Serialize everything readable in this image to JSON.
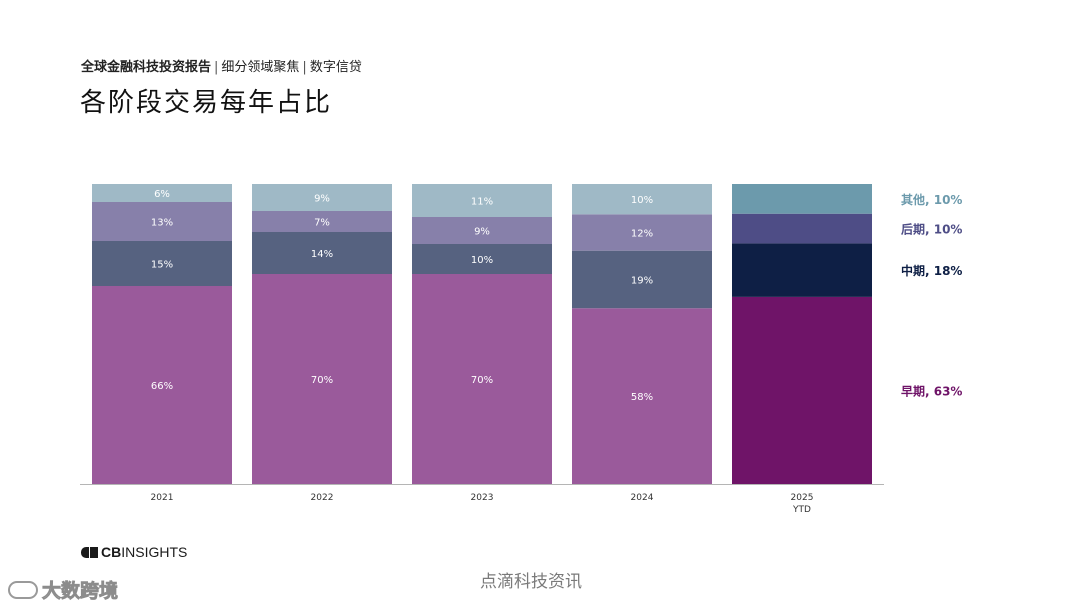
{
  "header": {
    "report_name": "全球金融科技投资报告",
    "section": "细分领域聚焦",
    "topic": "数字信贷",
    "separator": "|",
    "title": "各阶段交易每年占比"
  },
  "chart_data": {
    "type": "bar",
    "stacked": true,
    "categories": [
      "2021",
      "2022",
      "2023",
      "2024",
      "2025"
    ],
    "category_sublabels": [
      "",
      "",
      "",
      "",
      "YTD"
    ],
    "series": [
      {
        "name": "早期",
        "color": "#9a5a9b",
        "color_last": "#6f1468",
        "values": [
          66,
          70,
          70,
          58,
          63
        ],
        "labels": [
          "66%",
          "70%",
          "70%",
          "58%",
          ""
        ]
      },
      {
        "name": "中期",
        "color": "#566280",
        "color_last": "#0e1f45",
        "values": [
          15,
          14,
          10,
          19,
          18
        ],
        "labels": [
          "15%",
          "14%",
          "10%",
          "19%",
          ""
        ]
      },
      {
        "name": "后期",
        "color": "#8780aa",
        "color_last": "#4e4d86",
        "values": [
          13,
          7,
          9,
          12,
          10
        ],
        "labels": [
          "13%",
          "7%",
          "9%",
          "12%",
          ""
        ]
      },
      {
        "name": "其他",
        "color": "#9fb9c6",
        "color_last": "#6c9aac",
        "values": [
          6,
          9,
          11,
          10,
          10
        ],
        "labels": [
          "6%",
          "9%",
          "11%",
          "10%",
          ""
        ]
      }
    ],
    "legend": [
      {
        "text": "其他, 10%",
        "color": "#6c9aac",
        "series": "其他"
      },
      {
        "text": "后期, 10%",
        "color": "#4e4d86",
        "series": "后期"
      },
      {
        "text": "中期, 18%",
        "color": "#0e1f45",
        "series": "中期"
      },
      {
        "text": "早期, 63%",
        "color": "#6f1468",
        "series": "早期"
      }
    ],
    "legend_position": "right",
    "ylim": [
      0,
      100
    ],
    "grid": false,
    "xlabel": "",
    "ylabel": ""
  },
  "branding": {
    "logo_bold": "CB",
    "logo_rest": "INSIGHTS"
  },
  "watermarks": {
    "center": "点滴科技资讯",
    "left": "大数跨境"
  }
}
